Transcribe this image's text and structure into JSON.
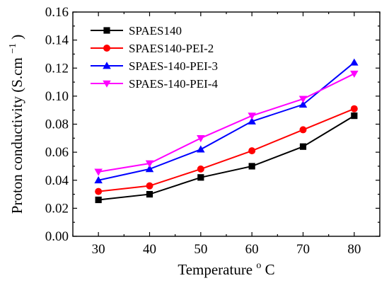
{
  "chart_data": {
    "type": "line",
    "xlabel": "Temperature",
    "xlabel_unit_sup": "o",
    "xlabel_unit": "C",
    "ylabel": "Proton conductivity (S.cm",
    "ylabel_sup": "−1",
    "ylabel_close": ")",
    "xlim": [
      25,
      85
    ],
    "ylim": [
      0,
      0.16
    ],
    "x_ticks": [
      30,
      40,
      50,
      60,
      70,
      80
    ],
    "x_tick_labels": [
      "30",
      "40",
      "50",
      "60",
      "70",
      "80"
    ],
    "y_ticks": [
      0,
      0.02,
      0.04,
      0.06,
      0.08,
      0.1,
      0.12,
      0.14,
      0.16
    ],
    "y_tick_labels": [
      "0.00",
      "0.02",
      "0.04",
      "0.06",
      "0.08",
      "0.10",
      "0.12",
      "0.14",
      "0.16"
    ],
    "legend_position": "top-left",
    "grid": false,
    "x": [
      30,
      40,
      50,
      60,
      70,
      80
    ],
    "series": [
      {
        "name": "SPAES140",
        "color": "#000000",
        "marker": "square",
        "values": [
          0.026,
          0.03,
          0.042,
          0.05,
          0.064,
          0.086
        ]
      },
      {
        "name": "SPAES140-PEI-2",
        "color": "#ff0000",
        "marker": "circle",
        "values": [
          0.032,
          0.036,
          0.048,
          0.061,
          0.076,
          0.091
        ]
      },
      {
        "name": "SPAES-140-PEI-3",
        "color": "#0000ff",
        "marker": "triangle-up",
        "values": [
          0.04,
          0.048,
          0.062,
          0.082,
          0.094,
          0.124
        ]
      },
      {
        "name": "SPAES-140-PEI-4",
        "color": "#ff00ff",
        "marker": "triangle-down",
        "values": [
          0.046,
          0.052,
          0.07,
          0.086,
          0.098,
          0.116
        ]
      }
    ]
  }
}
